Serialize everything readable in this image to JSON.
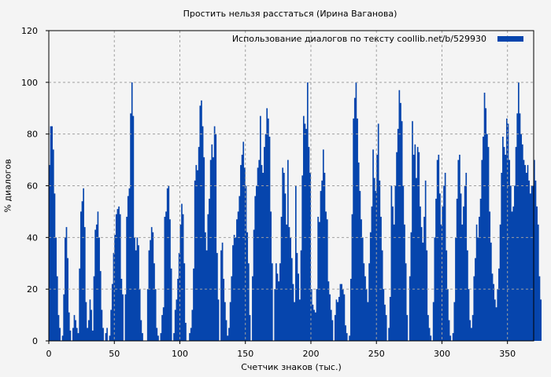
{
  "chart": {
    "title": "Простить нельзя расстаться (Ирина Ваганова)",
    "xlabel": "Счетчик знаков (тыс.)",
    "ylabel": "% диалогов",
    "legend_label": "Использование диалогов по тексту  coollib.net/b/529930",
    "bar_color": "#0645ad",
    "grid_color": "#a0a0a0",
    "background": "#f4f4f4"
  },
  "chart_data": {
    "type": "bar",
    "title": "Простить нельзя расстаться (Ирина Ваганова)",
    "xlabel": "Счетчик знаков (тыс.)",
    "ylabel": "% диалогов",
    "xlim": [
      0,
      370
    ],
    "ylim": [
      0,
      120
    ],
    "x_ticks": [
      0,
      50,
      100,
      150,
      200,
      250,
      300,
      350
    ],
    "y_ticks": [
      0,
      20,
      40,
      60,
      80,
      100,
      120
    ],
    "grid": true,
    "legend": {
      "position": "top-right",
      "entries": [
        "Использование диалогов по тексту  coollib.net/b/529930"
      ]
    },
    "series": [
      {
        "name": "Использование диалогов по тексту  coollib.net/b/529930",
        "x_step": 1,
        "values": [
          68,
          83,
          83,
          74,
          57,
          40,
          25,
          10,
          5,
          0,
          2,
          18,
          40,
          44,
          32,
          11,
          4,
          0,
          5,
          10,
          8,
          5,
          3,
          28,
          50,
          54,
          59,
          44,
          15,
          5,
          8,
          16,
          12,
          4,
          25,
          43,
          45,
          50,
          40,
          27,
          12,
          5,
          0,
          3,
          5,
          0,
          2,
          12,
          22,
          34,
          41,
          49,
          51,
          52,
          49,
          24,
          18,
          0,
          18,
          48,
          56,
          59,
          88,
          100,
          87,
          40,
          35,
          40,
          37,
          20,
          8,
          3,
          0,
          0,
          0,
          20,
          35,
          39,
          44,
          42,
          30,
          20,
          5,
          2,
          0,
          3,
          10,
          13,
          48,
          50,
          59,
          60,
          47,
          28,
          0,
          3,
          12,
          16,
          24,
          34,
          45,
          53,
          49,
          30,
          7,
          0,
          0,
          3,
          5,
          12,
          28,
          62,
          68,
          66,
          75,
          91,
          93,
          83,
          71,
          42,
          35,
          49,
          55,
          70,
          76,
          71,
          83,
          80,
          34,
          16,
          0,
          35,
          38,
          24,
          15,
          8,
          2,
          5,
          15,
          25,
          37,
          41,
          40,
          47,
          50,
          56,
          68,
          72,
          77,
          67,
          60,
          42,
          30,
          10,
          0,
          25,
          43,
          56,
          60,
          67,
          70,
          87,
          68,
          65,
          75,
          80,
          90,
          86,
          79,
          50,
          30,
          0,
          20,
          30,
          26,
          23,
          30,
          48,
          67,
          65,
          57,
          45,
          70,
          44,
          40,
          32,
          22,
          15,
          60,
          34,
          26,
          16,
          35,
          64,
          87,
          84,
          82,
          100,
          75,
          65,
          20,
          14,
          12,
          11,
          20,
          48,
          46,
          58,
          62,
          74,
          65,
          50,
          47,
          23,
          18,
          12,
          8,
          0,
          10,
          16,
          15,
          17,
          22,
          22,
          20,
          18,
          6,
          3,
          0,
          2,
          24,
          49,
          86,
          94,
          100,
          86,
          69,
          58,
          47,
          40,
          30,
          25,
          20,
          15,
          30,
          42,
          52,
          74,
          63,
          58,
          72,
          84,
          62,
          48,
          35,
          20,
          14,
          10,
          0,
          5,
          17,
          60,
          52,
          45,
          60,
          73,
          82,
          97,
          92,
          85,
          60,
          45,
          30,
          10,
          0,
          25,
          42,
          85,
          72,
          76,
          63,
          75,
          73,
          52,
          44,
          38,
          48,
          62,
          35,
          10,
          5,
          2,
          0,
          15,
          40,
          55,
          70,
          72,
          57,
          45,
          52,
          60,
          65,
          35,
          20,
          8,
          2,
          0,
          3,
          15,
          40,
          55,
          70,
          72,
          57,
          45,
          52,
          60,
          65,
          35,
          20,
          8,
          5,
          10,
          25,
          32,
          45,
          40,
          48,
          55,
          70,
          79,
          96,
          90,
          80,
          75,
          50,
          38,
          26,
          22,
          16,
          13,
          20,
          28,
          45,
          65,
          79,
          75,
          72,
          86,
          84,
          70,
          60,
          50,
          52,
          60,
          75,
          88,
          100,
          88,
          80,
          76,
          70,
          68,
          65,
          68,
          62,
          57,
          60,
          60,
          70,
          62,
          52,
          45,
          25,
          16
        ]
      }
    ]
  }
}
